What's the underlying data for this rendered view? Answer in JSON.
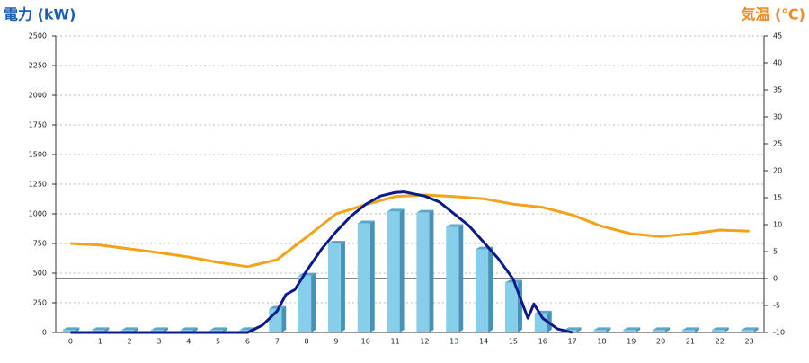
{
  "chart_data": {
    "type": "bar",
    "title": "電力 (kW)",
    "title_right": "気温 (℃)",
    "categories": [
      "0",
      "1",
      "2",
      "3",
      "4",
      "5",
      "6",
      "7",
      "8",
      "9",
      "10",
      "11",
      "12",
      "13",
      "14",
      "15",
      "16",
      "17",
      "18",
      "19",
      "20",
      "21",
      "22",
      "23"
    ],
    "series": [
      {
        "type": "bar",
        "color": "#87ceeb",
        "values": [
          20,
          20,
          20,
          20,
          20,
          20,
          20,
          200,
          480,
          750,
          920,
          1020,
          1010,
          890,
          700,
          420,
          160,
          20,
          20,
          20,
          20,
          20,
          20,
          20
        ]
      },
      {
        "type": "line",
        "axis": "y2",
        "color": "#f5a21b",
        "values": [
          6.5,
          6.2,
          5.5,
          4.8,
          4.0,
          3.0,
          2.2,
          3.5,
          7.7,
          12,
          13.7,
          15.2,
          15.5,
          15.2,
          14.8,
          13.8,
          13.2,
          11.8,
          9.7,
          8.3,
          7.8,
          8.3,
          9,
          8.8
        ]
      },
      {
        "type": "line",
        "color": "#0a1a8c",
        "x": [
          0,
          6,
          6.5,
          7,
          7.3,
          7.6,
          8,
          8.5,
          9,
          9.5,
          10,
          10.5,
          11,
          11.3,
          11.6,
          12,
          12.5,
          13,
          13.5,
          14,
          14.5,
          15,
          15.3,
          15.5,
          15.7,
          16,
          16.5,
          17
        ],
        "values": [
          0,
          0,
          60,
          180,
          320,
          360,
          520,
          700,
          850,
          980,
          1080,
          1150,
          1180,
          1185,
          1170,
          1150,
          1100,
          1000,
          900,
          760,
          620,
          450,
          250,
          120,
          240,
          120,
          30,
          0
        ]
      }
    ],
    "ylim": [
      0,
      2500
    ],
    "yticks": [
      0,
      250,
      500,
      750,
      1000,
      1250,
      1500,
      1750,
      2000,
      2250,
      2500
    ],
    "y2lim": [
      -10,
      45
    ],
    "y2ticks": [
      -10,
      -5,
      0,
      5,
      10,
      15,
      20,
      25,
      30,
      35,
      40,
      45
    ],
    "grid": true
  }
}
